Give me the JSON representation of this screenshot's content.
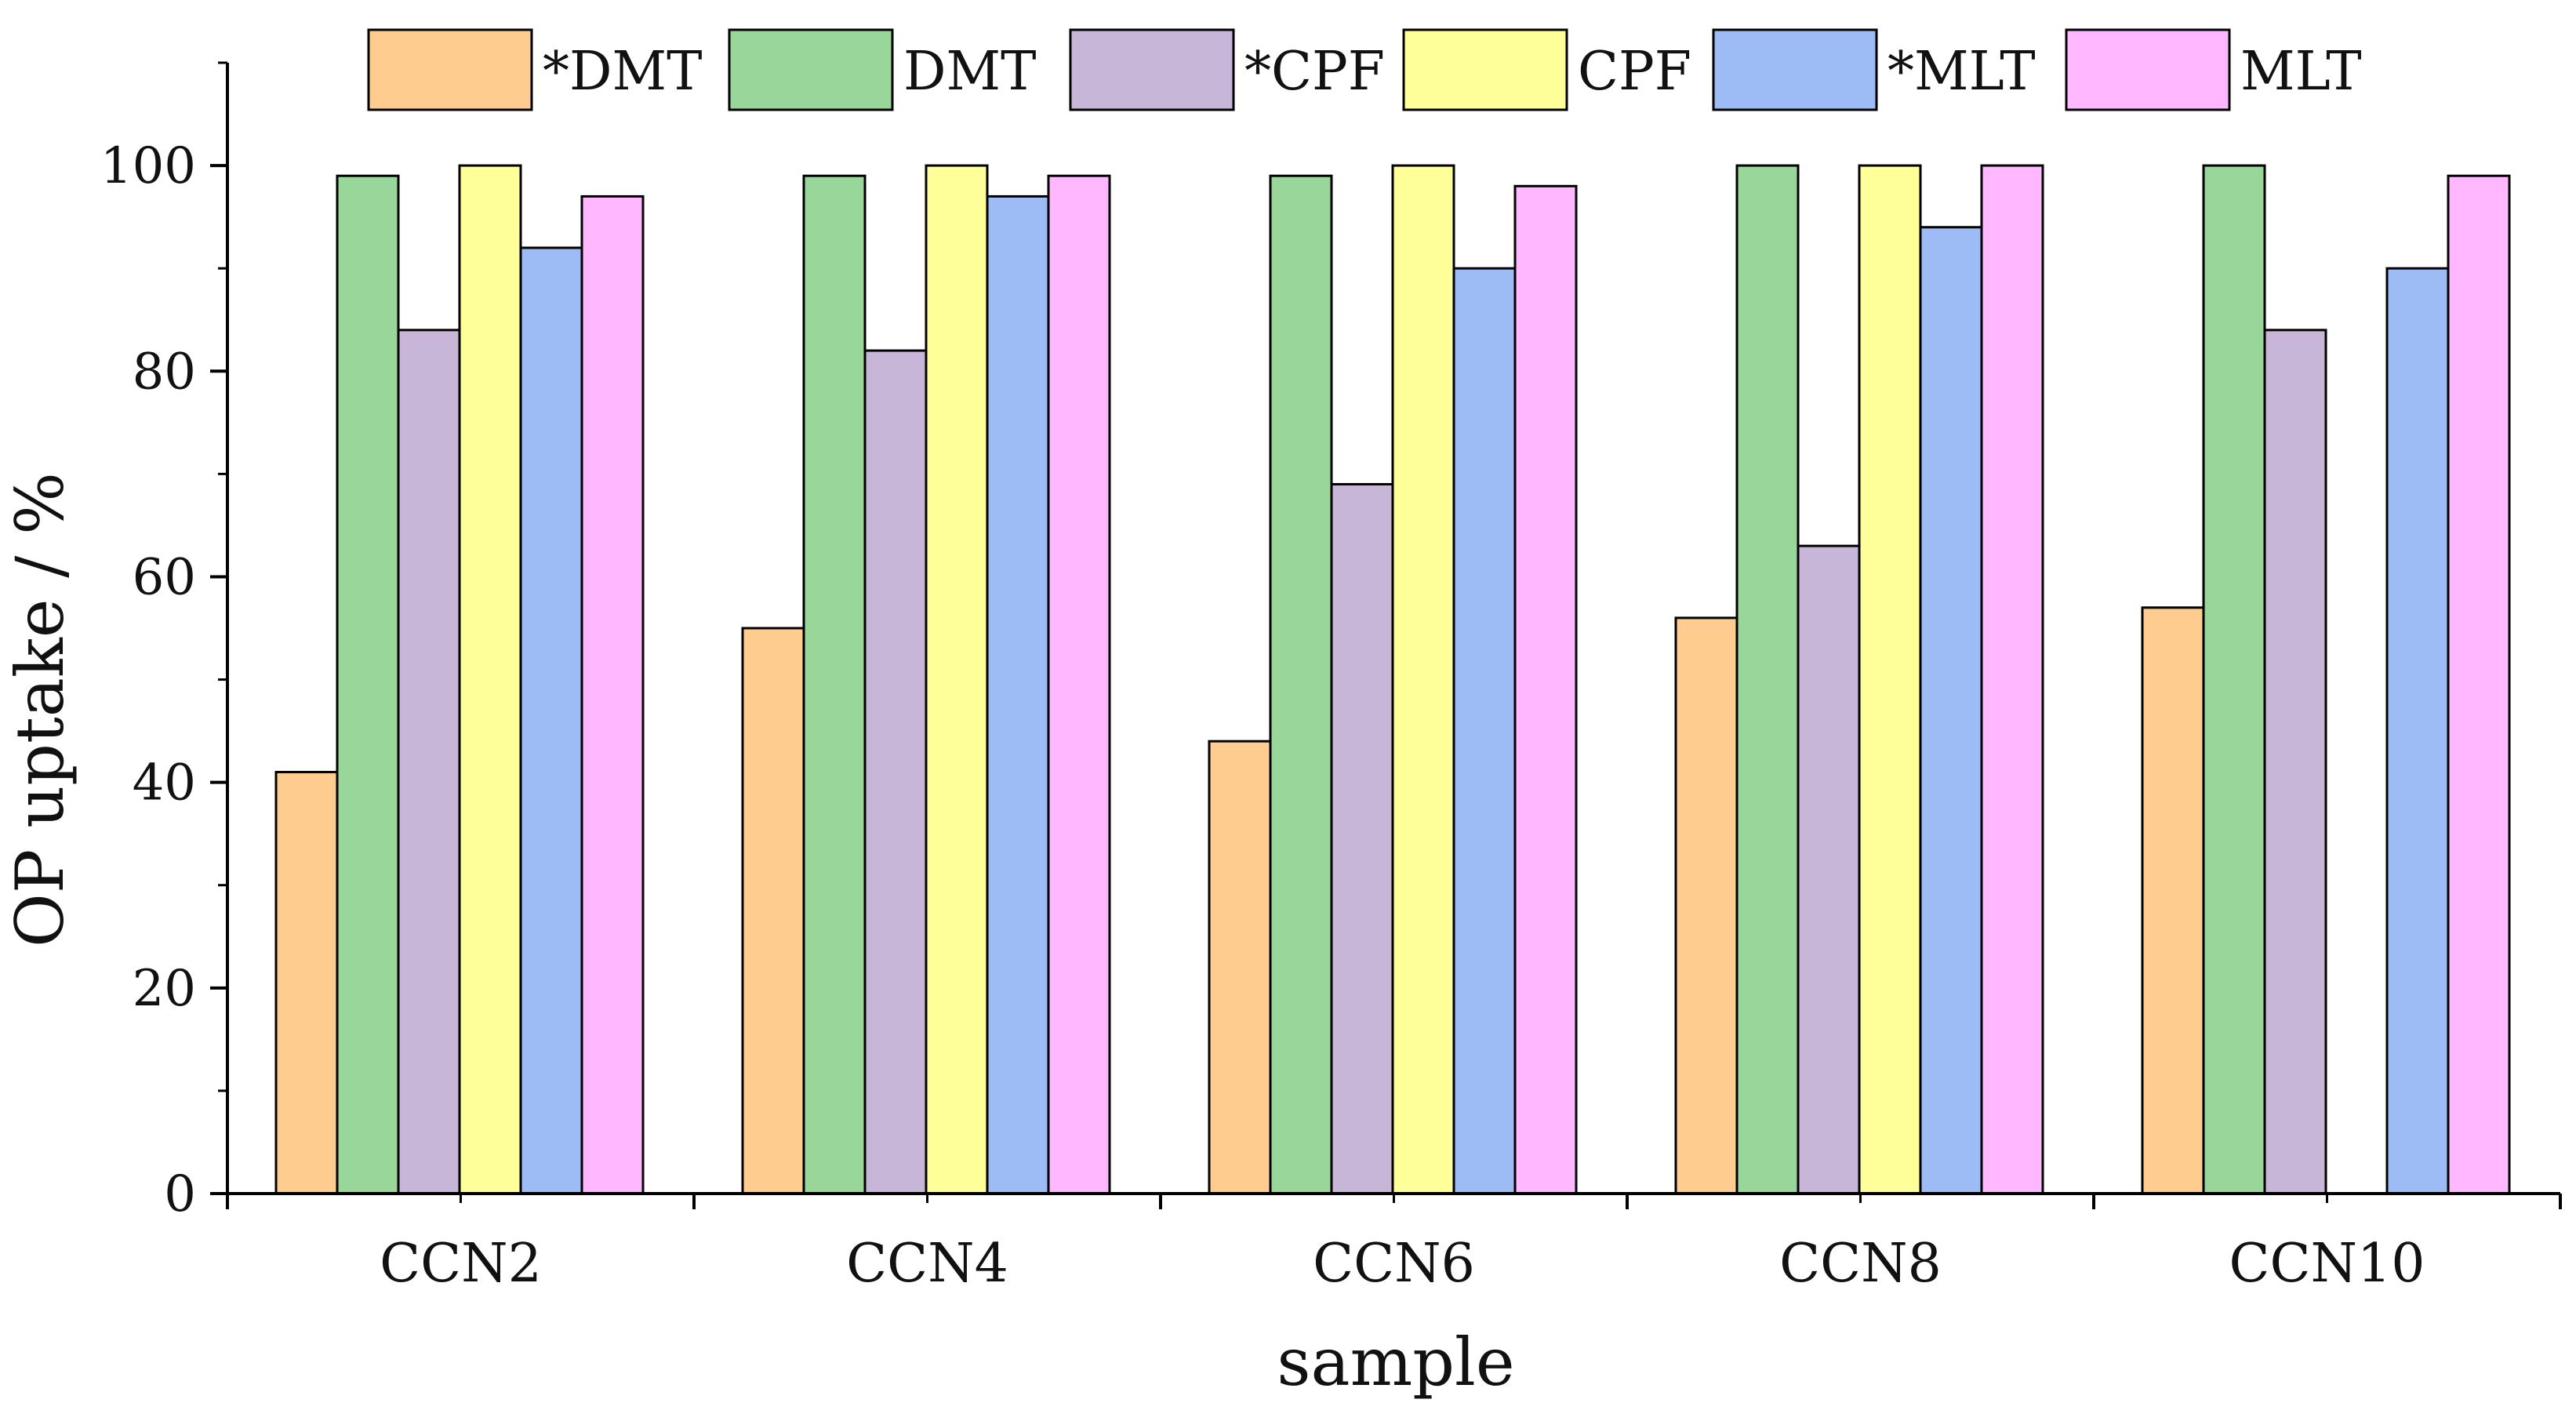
{
  "chart_data": {
    "type": "bar",
    "title": "",
    "xlabel": "sample",
    "ylabel": "OP uptake / %",
    "ylim": [
      0,
      110
    ],
    "yticks": [
      0,
      20,
      40,
      60,
      80,
      100
    ],
    "legend_position": "top",
    "categories": [
      "CCN2",
      "CCN4",
      "CCN6",
      "CCN8",
      "CCN10"
    ],
    "series": [
      {
        "name": "*DMT",
        "color": "#FFCC8F",
        "values": [
          41,
          55,
          44,
          56,
          57
        ]
      },
      {
        "name": "DMT",
        "color": "#99D699",
        "values": [
          99,
          99,
          99,
          100,
          100
        ]
      },
      {
        "name": "*CPF",
        "color": "#C8B6D9",
        "values": [
          84,
          82,
          69,
          63,
          84
        ]
      },
      {
        "name": "CPF",
        "color": "#FFFF99",
        "values": [
          100,
          100,
          100,
          100,
          null
        ]
      },
      {
        "name": "*MLT",
        "color": "#9DBBF5",
        "values": [
          92,
          97,
          90,
          94,
          90
        ]
      },
      {
        "name": "MLT",
        "color": "#FFB8FF",
        "values": [
          97,
          99,
          98,
          100,
          99
        ]
      }
    ]
  }
}
